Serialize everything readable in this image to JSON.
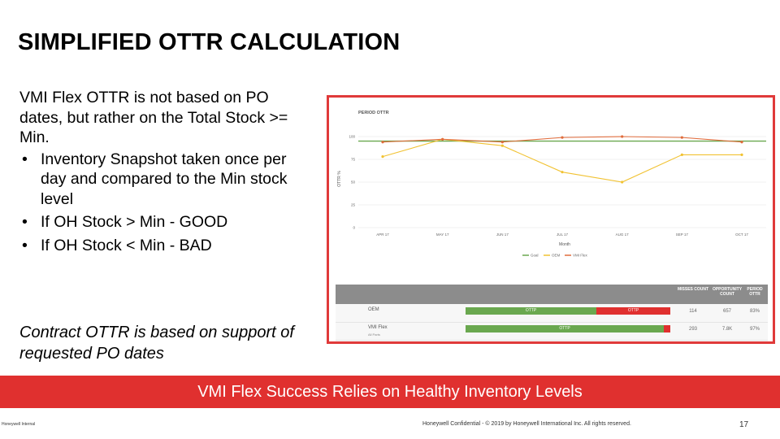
{
  "title": "SIMPLIFIED OTTR CALCULATION",
  "body": {
    "intro": "VMI Flex OTTR is not based on PO dates, but rather on the Total Stock >= Min.",
    "bullets": [
      "Inventory Snapshot taken once per day and compared to the Min stock level",
      "If OH Stock > Min - GOOD",
      "If OH Stock < Min - BAD"
    ]
  },
  "note": "Contract OTTR is based on support of requested PO dates",
  "chart_data": {
    "type": "line",
    "title": "PERIOD OTTR",
    "xlabel": "Month",
    "ylabel": "OTTR %",
    "categories": [
      "APR 17",
      "MAY 17",
      "JUN 17",
      "JUL 17",
      "AUG 17",
      "SEP 17",
      "OCT 17"
    ],
    "ylim": [
      0,
      100
    ],
    "yticks": [
      "0",
      "25",
      "50",
      "75",
      "100"
    ],
    "series": [
      {
        "name": "Goal",
        "color": "#6aa84f",
        "values": [
          95,
          95,
          95,
          95,
          95,
          95,
          95
        ]
      },
      {
        "name": "OEM",
        "color": "#f1c232",
        "values": [
          78,
          97,
          90,
          61,
          50,
          80,
          80
        ]
      },
      {
        "name": "VMI Flex",
        "color": "#e06c3c",
        "values": [
          94,
          97,
          94,
          99,
          100,
          99,
          94
        ]
      }
    ],
    "series_colors": {
      "goal": "#6aa84f",
      "oem": "#f1c232",
      "vmi": "#e06c3c"
    }
  },
  "table": {
    "headers": [
      "MISSES COUNT",
      "OPPORTUNITY COUNT",
      "PERIOD OTTR"
    ],
    "rows": [
      {
        "label": "OEM",
        "sub": "",
        "good": "OTTP",
        "bad": "OTTP",
        "good_pct": 0.64,
        "misses": "114",
        "opportunity": "657",
        "ottr": "83%"
      },
      {
        "label": "VMI Flex",
        "sub": "All Parts",
        "good": "OTTP",
        "bad": "",
        "good_pct": 0.97,
        "misses": "293",
        "opportunity": "7.8K",
        "ottr": "97%"
      }
    ]
  },
  "banner": "VMI Flex Success Relies on Healthy Inventory Levels",
  "footer": {
    "left": "Honeywell Internal",
    "center": "Honeywell Confidential - © 2019 by Honeywell International Inc. All rights reserved.",
    "page": "17"
  }
}
